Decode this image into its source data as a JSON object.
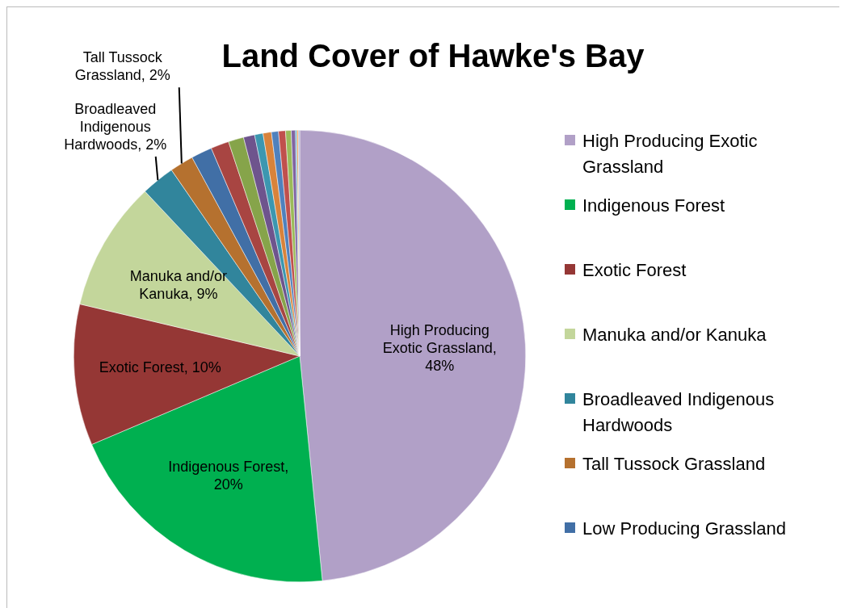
{
  "chart_data": {
    "type": "pie",
    "title": "Land Cover of Hawke's Bay",
    "categories": [
      "High Producing Exotic Grassland",
      "Indigenous Forest",
      "Exotic Forest",
      "Manuka and/or Kanuka",
      "Broadleaved Indigenous Hardwoods",
      "Tall Tussock Grassland",
      "Low Producing Grassland",
      null,
      null,
      null,
      null,
      null,
      null,
      null,
      null,
      null,
      null,
      null,
      null
    ],
    "values": [
      48.4,
      20.2,
      10.1,
      9.3,
      2.4,
      1.7,
      1.5,
      1.3,
      1.1,
      0.8,
      0.6,
      0.6,
      0.5,
      0.5,
      0.4,
      0.3,
      0.1,
      0.1,
      0.1
    ],
    "value_labels": [
      "High Producing Exotic Grassland, 48%",
      "Indigenous Forest, 20%",
      "Exotic Forest, 10%",
      "Manuka and/or Kanuka, 9%",
      "Broadleaved Indigenous Hardwoods, 2%",
      "Tall Tussock Grassland, 2%",
      null,
      null,
      null,
      null,
      null,
      null,
      null,
      null,
      null,
      null,
      null,
      null,
      null
    ],
    "colors": [
      "#b1a0c7",
      "#00b050",
      "#953735",
      "#c3d69b",
      "#31859c",
      "#b5712f",
      "#416fa6",
      "#a84542",
      "#86a44a",
      "#6e548d",
      "#3c97b0",
      "#d8833b",
      "#4f81bd",
      "#c0504d",
      "#9bbb59",
      "#8064a2",
      "#4bacc6",
      "#f79646",
      "#a5b6d6"
    ],
    "legend": "right"
  }
}
